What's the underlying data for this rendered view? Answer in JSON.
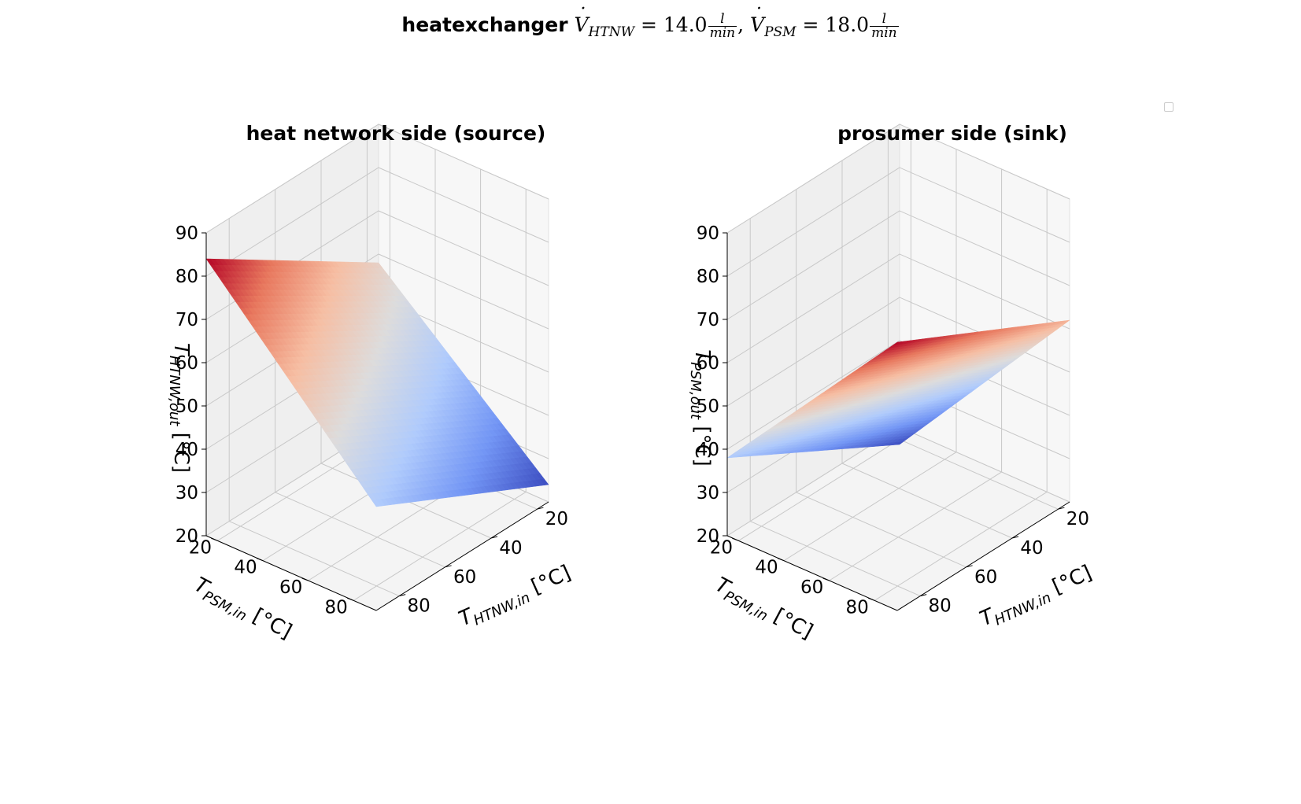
{
  "figure": {
    "suptitle": {
      "bold": "heatexchanger",
      "symbol_1": "V",
      "sub_1": "HTNW",
      "eq_1": " = 14.0",
      "symbol_2": "V",
      "sub_2": "PSM",
      "eq_2": " = 18.0",
      "frac_num": "l",
      "frac_den": "min",
      "separator": ",  "
    },
    "colormap": [
      "#3b4cc0",
      "#7396f5",
      "#b0cbfc",
      "#dddcdc",
      "#f6bea3",
      "#e8785e",
      "#b40426"
    ]
  },
  "chart_data": [
    {
      "type": "surface3d",
      "title": "heat network side (source)",
      "xlabel": "T_{HTNW,in} [°C]",
      "ylabel": "T_{PSM,in} [°C]",
      "zlabel": "T_{HTNW,out} [°C]",
      "xticks": [
        "20",
        "40",
        "60",
        "80"
      ],
      "yticks": [
        "20",
        "40",
        "60",
        "80"
      ],
      "zticks": [
        "20",
        "30",
        "40",
        "50",
        "60",
        "70",
        "80",
        "90"
      ],
      "xlim": [
        15,
        90
      ],
      "ylim": [
        15,
        90
      ],
      "zlim": [
        20,
        90
      ],
      "corners": [
        {
          "x": 90,
          "y": 15,
          "z": 84
        },
        {
          "x": 15,
          "y": 15,
          "z": 58
        },
        {
          "x": 15,
          "y": 90,
          "z": 24
        },
        {
          "x": 90,
          "y": 90,
          "z": 44
        }
      ],
      "surface_z_range": [
        24,
        84
      ]
    },
    {
      "type": "surface3d",
      "title": "prosumer side (sink)",
      "xlabel": "T_{HTNW,in} [°C]",
      "ylabel": "T_{PSM,in} [°C]",
      "zlabel": "T_{PSM,out} [°C]",
      "xticks": [
        "20",
        "40",
        "60",
        "80"
      ],
      "yticks": [
        "20",
        "40",
        "60",
        "80"
      ],
      "zticks": [
        "20",
        "30",
        "40",
        "50",
        "60",
        "70",
        "80",
        "90"
      ],
      "xlim": [
        15,
        90
      ],
      "ylim": [
        15,
        90
      ],
      "zlim": [
        20,
        90
      ],
      "corners": [
        {
          "x": 90,
          "y": 15,
          "z": 38
        },
        {
          "x": 15,
          "y": 15,
          "z": 16
        },
        {
          "x": 15,
          "y": 90,
          "z": 62
        },
        {
          "x": 90,
          "y": 90,
          "z": 82
        }
      ],
      "surface_z_range": [
        16,
        82
      ]
    }
  ]
}
